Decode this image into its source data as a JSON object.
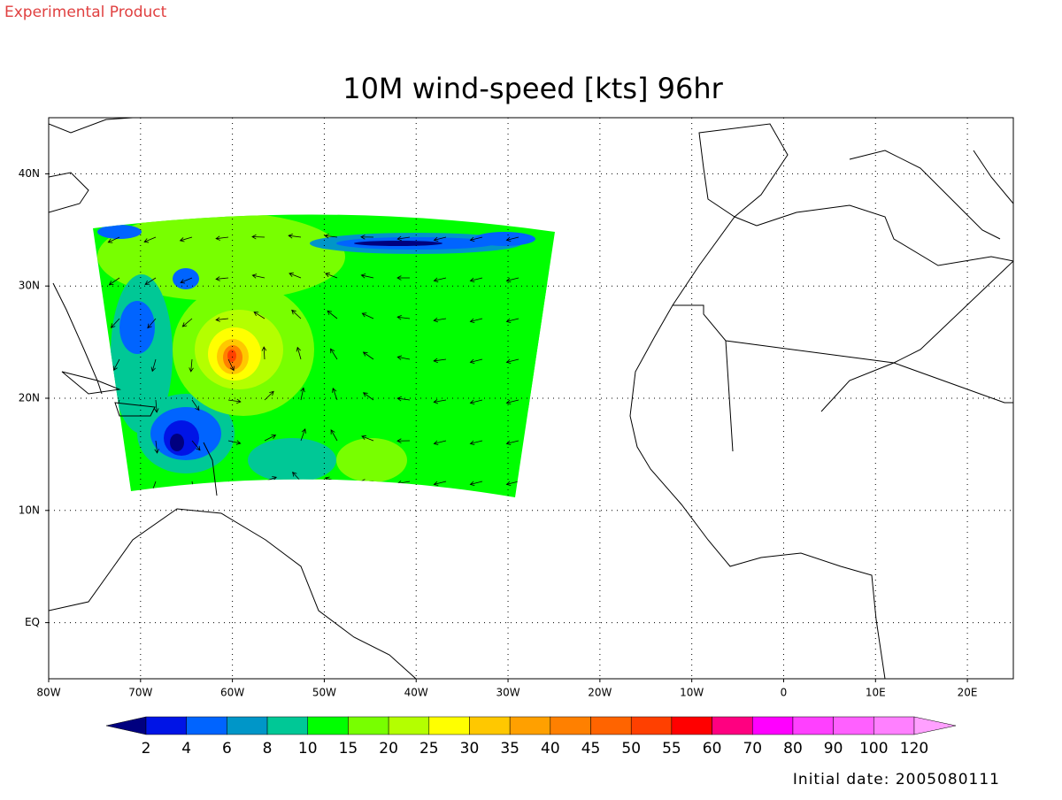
{
  "header": {
    "note": "Experimental Product"
  },
  "map": {
    "title": "10M wind-speed [kts] 96hr",
    "xlim": [
      -80,
      25
    ],
    "ylim": [
      -5,
      45
    ],
    "xticks": [
      {
        "value": -80,
        "label": "80W"
      },
      {
        "value": -70,
        "label": "70W"
      },
      {
        "value": -60,
        "label": "60W"
      },
      {
        "value": -50,
        "label": "50W"
      },
      {
        "value": -40,
        "label": "40W"
      },
      {
        "value": -30,
        "label": "30W"
      },
      {
        "value": -20,
        "label": "20W"
      },
      {
        "value": -10,
        "label": "10W"
      },
      0,
      {
        "value": 10,
        "label": "10E"
      },
      {
        "value": 20,
        "label": "20E"
      }
    ],
    "yticks": [
      {
        "value": 0,
        "label": "EQ"
      },
      {
        "value": 10,
        "label": "10N"
      },
      {
        "value": 20,
        "label": "20N"
      },
      {
        "value": 30,
        "label": "30N"
      },
      {
        "value": 40,
        "label": "40N"
      }
    ],
    "grid": true
  },
  "colorbar": {
    "levels": [
      2,
      4,
      6,
      8,
      10,
      15,
      20,
      25,
      30,
      35,
      40,
      45,
      50,
      55,
      60,
      70,
      80,
      90,
      100,
      120
    ],
    "colors": [
      "#00007f",
      "#0014e6",
      "#0064ff",
      "#0096c8",
      "#00c896",
      "#00ff00",
      "#78ff00",
      "#b4ff00",
      "#ffff00",
      "#ffc800",
      "#ffa000",
      "#ff8000",
      "#ff6400",
      "#ff4000",
      "#ff0000",
      "#ff0080",
      "#ff00ff",
      "#ff40ff",
      "#ff60ff",
      "#ff80ff",
      "#ffa0ff"
    ]
  },
  "footer": {
    "initial_date": "Initial date: 2005080111"
  }
}
